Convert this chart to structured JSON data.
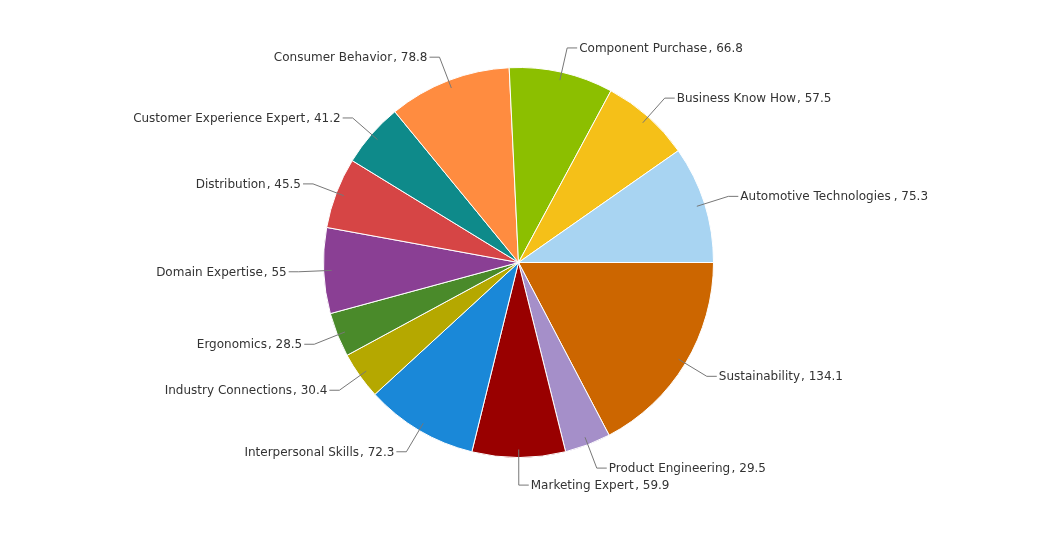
{
  "chart_data": {
    "type": "pie",
    "categories": [
      "Sustainability",
      "Product Engineering",
      "Marketing Expert",
      "Interpersonal Skills",
      "Industry Connections",
      "Ergonomics",
      "Domain Expertise",
      "Distribution",
      "Customer Experience Expert",
      "Consumer Behavior",
      "Component Purchase",
      "Business Know How",
      "Automotive Technologies"
    ],
    "values": [
      134.1,
      29.5,
      59.9,
      72.3,
      30.4,
      28.5,
      55,
      45.5,
      41.2,
      78.8,
      66.8,
      57.5,
      75.3
    ],
    "value_labels": [
      ", 134.1",
      ", 29.5",
      ", 59.9",
      ", 72.3",
      ", 30.4",
      ", 28.5",
      ", 55",
      ", 45.5",
      ", 41.2",
      ", 78.8",
      ", 66.8",
      ", 57.5",
      ", 75.3"
    ],
    "colors": [
      "#cc6600",
      "#a58fc9",
      "#990000",
      "#1a88d8",
      "#b5a800",
      "#4a8a2a",
      "#8a3f94",
      "#d64545",
      "#0e8a8a",
      "#ff8c40",
      "#8cbf00",
      "#f5c018",
      "#a8d4f2"
    ],
    "legend": false
  }
}
